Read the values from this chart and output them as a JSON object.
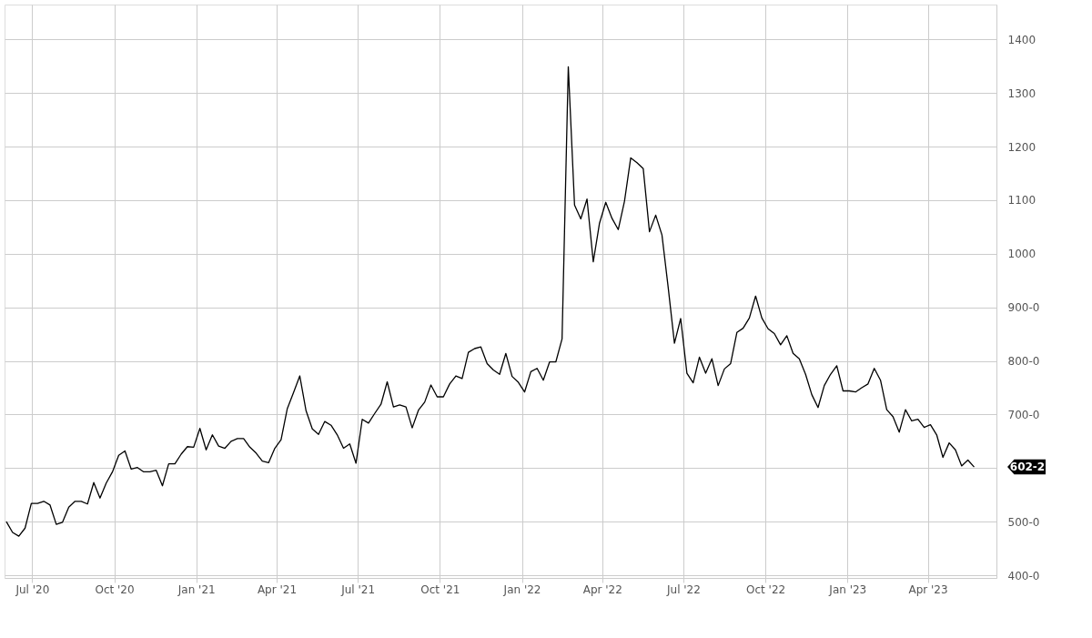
{
  "chart_data": {
    "type": "line",
    "x": [
      "2020-06-02",
      "2020-06-09",
      "2020-06-16",
      "2020-06-23",
      "2020-06-30",
      "2020-07-07",
      "2020-07-14",
      "2020-07-21",
      "2020-07-28",
      "2020-08-04",
      "2020-08-11",
      "2020-08-18",
      "2020-08-25",
      "2020-09-01",
      "2020-09-08",
      "2020-09-15",
      "2020-09-22",
      "2020-09-29",
      "2020-10-06",
      "2020-10-13",
      "2020-10-20",
      "2020-10-27",
      "2020-11-03",
      "2020-11-10",
      "2020-11-17",
      "2020-11-24",
      "2020-12-01",
      "2020-12-08",
      "2020-12-15",
      "2020-12-22",
      "2020-12-29",
      "2021-01-05",
      "2021-01-12",
      "2021-01-19",
      "2021-01-26",
      "2021-02-02",
      "2021-02-09",
      "2021-02-16",
      "2021-02-23",
      "2021-03-02",
      "2021-03-09",
      "2021-03-16",
      "2021-03-23",
      "2021-03-30",
      "2021-04-06",
      "2021-04-13",
      "2021-04-20",
      "2021-04-27",
      "2021-05-04",
      "2021-05-11",
      "2021-05-18",
      "2021-05-25",
      "2021-06-01",
      "2021-06-08",
      "2021-06-15",
      "2021-06-22",
      "2021-06-29",
      "2021-07-06",
      "2021-07-13",
      "2021-07-20",
      "2021-07-27",
      "2021-08-03",
      "2021-08-10",
      "2021-08-17",
      "2021-08-24",
      "2021-08-31",
      "2021-09-07",
      "2021-09-14",
      "2021-09-21",
      "2021-09-28",
      "2021-10-05",
      "2021-10-12",
      "2021-10-19",
      "2021-10-26",
      "2021-11-02",
      "2021-11-09",
      "2021-11-16",
      "2021-11-23",
      "2021-11-30",
      "2021-12-07",
      "2021-12-14",
      "2021-12-21",
      "2021-12-28",
      "2022-01-04",
      "2022-01-11",
      "2022-01-18",
      "2022-01-25",
      "2022-02-01",
      "2022-02-08",
      "2022-02-15",
      "2022-02-22",
      "2022-03-01",
      "2022-03-08",
      "2022-03-15",
      "2022-03-22",
      "2022-03-29",
      "2022-04-05",
      "2022-04-12",
      "2022-04-19",
      "2022-04-26",
      "2022-05-03",
      "2022-05-10",
      "2022-05-17",
      "2022-05-24",
      "2022-05-31",
      "2022-06-07",
      "2022-06-14",
      "2022-06-21",
      "2022-06-28",
      "2022-07-05",
      "2022-07-12",
      "2022-07-19",
      "2022-07-26",
      "2022-08-02",
      "2022-08-09",
      "2022-08-16",
      "2022-08-23",
      "2022-08-30",
      "2022-09-06",
      "2022-09-13",
      "2022-09-20",
      "2022-09-27",
      "2022-10-04",
      "2022-10-11",
      "2022-10-18",
      "2022-10-25",
      "2022-11-01",
      "2022-11-08",
      "2022-11-15",
      "2022-11-22",
      "2022-11-29",
      "2022-12-06",
      "2022-12-13",
      "2022-12-20",
      "2022-12-27",
      "2023-01-03",
      "2023-01-10",
      "2023-01-17",
      "2023-01-24",
      "2023-01-31",
      "2023-02-07",
      "2023-02-14",
      "2023-02-21",
      "2023-02-28",
      "2023-03-07",
      "2023-03-14",
      "2023-03-21",
      "2023-03-28",
      "2023-04-04",
      "2023-04-11",
      "2023-04-18",
      "2023-04-25",
      "2023-05-02",
      "2023-05-09",
      "2023-05-16",
      "2023-05-23"
    ],
    "series": [
      {
        "color": "#000000",
        "values": [
          500,
          480,
          473,
          488,
          534,
          534,
          538,
          531,
          495,
          499,
          527,
          538,
          538,
          533,
          573,
          544,
          572,
          593,
          624,
          632,
          598,
          601,
          593,
          593,
          596,
          567,
          608,
          608,
          626,
          640,
          639,
          674,
          634,
          662,
          641,
          637,
          650,
          655,
          655,
          639,
          628,
          613,
          610,
          637,
          653,
          711,
          741,
          772,
          707,
          673,
          663,
          687,
          680,
          662,
          637,
          645,
          609,
          691,
          684,
          702,
          719,
          761,
          714,
          718,
          714,
          675,
          708,
          723,
          755,
          733,
          733,
          757,
          772,
          767,
          816,
          823,
          826,
          795,
          783,
          775,
          814,
          771,
          760,
          742,
          780,
          786,
          764,
          798,
          798,
          841,
          1349,
          1091,
          1065,
          1102,
          985,
          1057,
          1096,
          1066,
          1045,
          1098,
          1179,
          1170,
          1159,
          1041,
          1072,
          1035,
          937,
          833,
          879,
          777,
          759,
          807,
          777,
          804,
          754,
          785,
          795,
          853,
          861,
          880,
          921,
          880,
          860,
          851,
          830,
          847,
          814,
          804,
          775,
          737,
          713,
          754,
          775,
          791,
          744,
          744,
          742,
          750,
          757,
          786,
          764,
          709,
          696,
          667,
          709,
          688,
          691,
          676,
          681,
          662,
          620,
          647,
          634,
          604,
          615,
          602
        ]
      }
    ],
    "xlim": [
      "2020-05-31",
      "2023-06-17"
    ],
    "ylim": [
      395,
      1465
    ],
    "xticks": [
      {
        "value": "2020-07-01",
        "label": "Jul '20"
      },
      {
        "value": "2020-10-01",
        "label": "Oct '20"
      },
      {
        "value": "2021-01-01",
        "label": "Jan '21"
      },
      {
        "value": "2021-04-01",
        "label": "Apr '21"
      },
      {
        "value": "2021-07-01",
        "label": "Jul '21"
      },
      {
        "value": "2021-10-01",
        "label": "Oct '21"
      },
      {
        "value": "2022-01-01",
        "label": "Jan '22"
      },
      {
        "value": "2022-04-01",
        "label": "Apr '22"
      },
      {
        "value": "2022-07-01",
        "label": "Jul '22"
      },
      {
        "value": "2022-10-01",
        "label": "Oct '22"
      },
      {
        "value": "2023-01-01",
        "label": "Jan '23"
      },
      {
        "value": "2023-04-01",
        "label": "Apr '23"
      }
    ],
    "yticks": [
      {
        "value": 400,
        "label": "400-0"
      },
      {
        "value": 500,
        "label": "500-0"
      },
      {
        "value": 600,
        "label": null
      },
      {
        "value": 700,
        "label": "700-0"
      },
      {
        "value": 800,
        "label": "800-0"
      },
      {
        "value": 900,
        "label": "900-0"
      },
      1000,
      1100,
      1200,
      1300,
      1400
    ],
    "annotations": [
      "602-2"
    ],
    "grid": true,
    "marker": "none",
    "line_style": "solid"
  }
}
